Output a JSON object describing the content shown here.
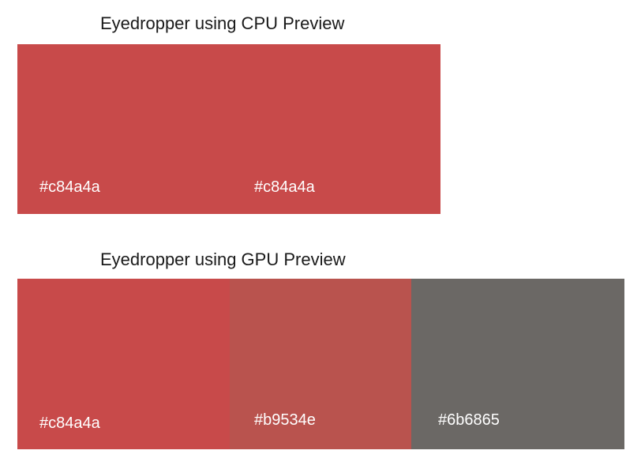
{
  "cpu_section": {
    "heading": "Eyedropper using CPU Preview",
    "swatches": [
      {
        "hex_label": "#c84a4a",
        "color": "#c84a4a"
      },
      {
        "hex_label": "#c84a4a",
        "color": "#c84a4a"
      }
    ]
  },
  "gpu_section": {
    "heading": "Eyedropper using GPU Preview",
    "swatches": [
      {
        "hex_label": "#c84a4a",
        "color": "#c84a4a"
      },
      {
        "hex_label": "#b9534e",
        "color": "#b9534e"
      },
      {
        "hex_label": "#6b6865",
        "color": "#6b6865"
      }
    ]
  }
}
